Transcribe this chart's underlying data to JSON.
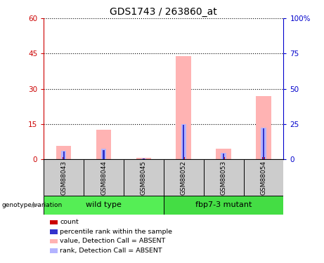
{
  "title": "GDS1743 / 263860_at",
  "samples": [
    "GSM88043",
    "GSM88044",
    "GSM88045",
    "GSM88052",
    "GSM88053",
    "GSM88054"
  ],
  "ylim_left": [
    0,
    60
  ],
  "ylim_right": [
    0,
    100
  ],
  "yticks_left": [
    0,
    15,
    30,
    45,
    60
  ],
  "ytick_labels_left": [
    "0",
    "15",
    "30",
    "45",
    "60"
  ],
  "yticks_right": [
    0,
    25,
    50,
    75,
    100
  ],
  "ytick_labels_right": [
    "0",
    "25",
    "50",
    "75",
    "100%"
  ],
  "pink_values": [
    5.5,
    12.5,
    0.7,
    44.0,
    4.5,
    27.0
  ],
  "blue_values": [
    3.5,
    4.5,
    0.4,
    15.0,
    2.8,
    13.5
  ],
  "red_values": [
    0.8,
    0.8,
    0.3,
    0.8,
    0.8,
    0.8
  ],
  "dblue_values": [
    3.2,
    4.0,
    0.3,
    14.5,
    2.5,
    13.0
  ],
  "pink_color": "#ffb3b3",
  "blue_color": "#b3b3ff",
  "red_color": "#cc0000",
  "dblue_color": "#3333cc",
  "left_axis_color": "#cc0000",
  "right_axis_color": "#0000cc",
  "sample_box_color": "#cccccc",
  "group_defs": [
    {
      "label": "wild type",
      "start": 0,
      "end": 3,
      "color": "#55ee55"
    },
    {
      "label": "fbp7-3 mutant",
      "start": 3,
      "end": 6,
      "color": "#44dd44"
    }
  ],
  "legend_items": [
    {
      "label": "count",
      "color": "#cc0000"
    },
    {
      "label": "percentile rank within the sample",
      "color": "#3333cc"
    },
    {
      "label": "value, Detection Call = ABSENT",
      "color": "#ffb3b3"
    },
    {
      "label": "rank, Detection Call = ABSENT",
      "color": "#b3b3ff"
    }
  ],
  "genotype_label": "genotype/variation"
}
